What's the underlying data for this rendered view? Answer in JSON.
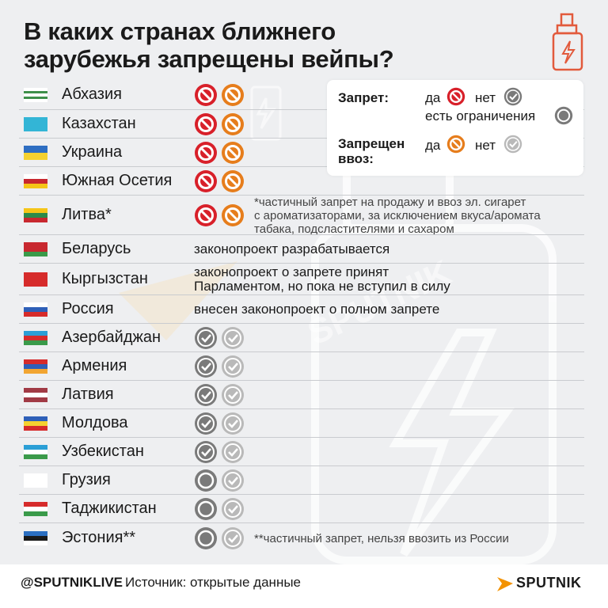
{
  "title_line1": "В каких странах ближнего",
  "title_line2": "зарубежья запрещены вейпы?",
  "legend": {
    "ban_label": "Запрет:",
    "yes": "да",
    "no": "нет",
    "restricted": "есть ограничения",
    "import_label_1": "Запрещен",
    "import_label_2": "ввоз:",
    "import_yes": "да",
    "import_no": "нет"
  },
  "rows": [
    {
      "country": "Абхазия",
      "ban": "yes",
      "import": "yes"
    },
    {
      "country": "Казахстан",
      "ban": "yes",
      "import": "yes"
    },
    {
      "country": "Украина",
      "ban": "yes",
      "import": "yes"
    },
    {
      "country": "Южная Осетия",
      "ban": "yes",
      "import": "yes"
    },
    {
      "country": "Литва*",
      "ban": "yes",
      "import": "yes",
      "footnote": [
        "*частичный запрет на продажу и ввоз эл. сигарет",
        "с ароматизаторами, за исключением вкуса/аромата",
        "табака, подсластителями и сахаром"
      ]
    },
    {
      "country": "Беларусь",
      "note": [
        "законопроект разрабатывается"
      ]
    },
    {
      "country": "Кыргызстан",
      "note": [
        "законопроект о запрете принят",
        "Парламентом, но пока не вступил в силу"
      ]
    },
    {
      "country": "Россия",
      "note": [
        "внесен законопроект о полном запрете"
      ]
    },
    {
      "country": "Азербайджан",
      "ban": "no",
      "import": "no"
    },
    {
      "country": "Армения",
      "ban": "no",
      "import": "no"
    },
    {
      "country": "Латвия",
      "ban": "no",
      "import": "no"
    },
    {
      "country": "Молдова",
      "ban": "no",
      "import": "no"
    },
    {
      "country": "Узбекистан",
      "ban": "no",
      "import": "no"
    },
    {
      "country": "Грузия",
      "ban": "restricted",
      "import": "no"
    },
    {
      "country": "Таджикистан",
      "ban": "restricted",
      "import": "no"
    },
    {
      "country": "Эстония**",
      "ban": "restricted",
      "import": "no",
      "footnote": [
        "**частичный запрет, нельзя ввозить из России"
      ]
    }
  ],
  "footer": {
    "handle": "@SPUTNIKLIVE",
    "source": "Источник: открытые данные",
    "brand": "SPUTNIK"
  },
  "colors": {
    "ban_red": "#d8202a",
    "import_orange": "#e67d1c",
    "check_dark": "#7a7a7a",
    "check_light": "#b9b9b9",
    "accent_logo": "#f39200"
  },
  "icons": {
    "ban": "prohibited-circle-icon",
    "check": "check-circle-icon",
    "restricted": "ring-circle-icon",
    "header": "vape-device-icon"
  }
}
